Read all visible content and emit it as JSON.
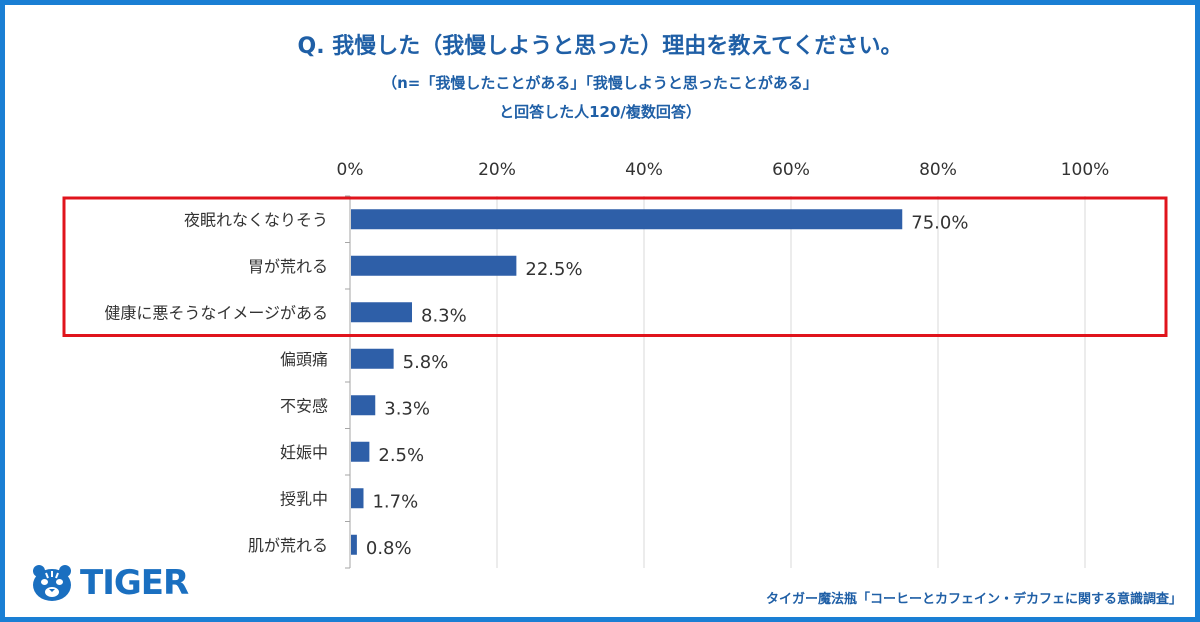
{
  "header": {
    "title": "Q. 我慢した（我慢しようと思った）理由を教えてください。",
    "subtitle_line1": "（n=「我慢したことがある」「我慢しようと思ったことがある」",
    "subtitle_line2": "と回答した人120/複数回答）"
  },
  "chart_data": {
    "type": "bar",
    "orientation": "horizontal",
    "categories": [
      "夜眠れなくなりそう",
      "胃が荒れる",
      "健康に悪そうなイメージがある",
      "偏頭痛",
      "不安感",
      "妊娠中",
      "授乳中",
      "肌が荒れる"
    ],
    "values": [
      75.0,
      22.5,
      8.3,
      5.8,
      3.3,
      2.5,
      1.7,
      0.8
    ],
    "value_labels": [
      "75.0%",
      "22.5%",
      "8.3%",
      "5.8%",
      "3.3%",
      "2.5%",
      "1.7%",
      "0.8%"
    ],
    "xlim": [
      0,
      100
    ],
    "x_ticks": [
      "0%",
      "20%",
      "40%",
      "60%",
      "80%",
      "100%"
    ],
    "grid": true,
    "bar_color": "#2e5fa8",
    "highlight": {
      "categories": [
        "夜眠れなくなりそう",
        "胃が荒れる",
        "健康に悪そうなイメージがある"
      ],
      "color": "#e0141c"
    }
  },
  "colors": {
    "frame": "#1a7fd4",
    "title": "#1f5fa6",
    "logo": "#1a6fc0"
  },
  "footer": {
    "logo_text": "TIGER",
    "logo_icon": "tiger-head-icon",
    "source": "タイガー魔法瓶「コーヒーとカフェイン・デカフェに関する意識調査」"
  }
}
